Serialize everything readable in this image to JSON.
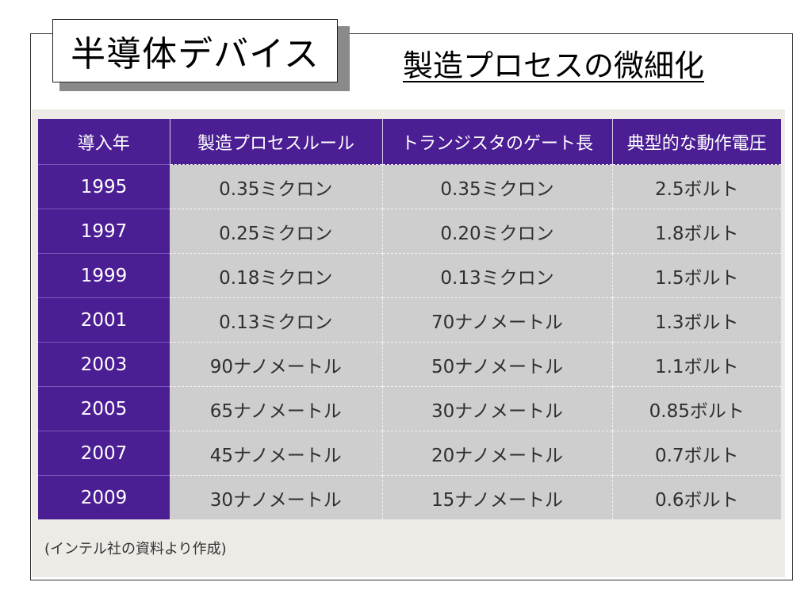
{
  "slide": {
    "title": "半導体デバイス",
    "subtitle": "製造プロセスの微細化"
  },
  "chart_data": {
    "type": "table",
    "columns": [
      "導入年",
      "製造プロセスルール",
      "トランジスタのゲート長",
      "典型的な動作電圧"
    ],
    "rows": [
      [
        "1995",
        "0.35ミクロン",
        "0.35ミクロン",
        "2.5ボルト"
      ],
      [
        "1997",
        "0.25ミクロン",
        "0.20ミクロン",
        "1.8ボルト"
      ],
      [
        "1999",
        "0.18ミクロン",
        "0.13ミクロン",
        "1.5ボルト"
      ],
      [
        "2001",
        "0.13ミクロン",
        "70ナノメートル",
        "1.3ボルト"
      ],
      [
        "2003",
        "90ナノメートル",
        "50ナノメートル",
        "1.1ボルト"
      ],
      [
        "2005",
        "65ナノメートル",
        "30ナノメートル",
        "0.85ボルト"
      ],
      [
        "2007",
        "45ナノメートル",
        "20ナノメートル",
        "0.7ボルト"
      ],
      [
        "2009",
        "30ナノメートル",
        "15ナノメートル",
        "0.6ボルト"
      ]
    ],
    "source": "(インテル社の資料より作成)"
  },
  "colors": {
    "header_bg": "#4b1e94",
    "year_column_bg": "#4b1e94",
    "cell_bg": "#cfcece",
    "photo_bg": "#eeeae6"
  }
}
